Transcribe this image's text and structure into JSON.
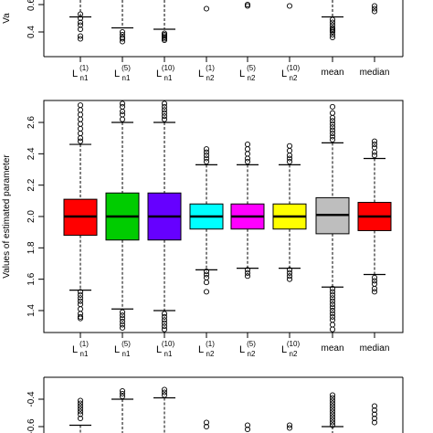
{
  "chart_data": [
    {
      "type": "boxplot",
      "panel": "top-partial",
      "categories": [
        {
          "base": "L",
          "sub": "n1",
          "sup": "(1)"
        },
        {
          "base": "L",
          "sub": "n1",
          "sup": "(5)"
        },
        {
          "base": "L",
          "sub": "n1",
          "sup": "(10)"
        },
        {
          "base": "L",
          "sub": "n2",
          "sup": "(1)"
        },
        {
          "base": "L",
          "sub": "n2",
          "sup": "(5)"
        },
        {
          "base": "L",
          "sub": "n2",
          "sup": "(10)"
        },
        {
          "base": "mean",
          "sub": "",
          "sup": ""
        },
        {
          "base": "median",
          "sub": "",
          "sup": ""
        }
      ],
      "yticks": [
        "0.4",
        "0.6"
      ],
      "ylabel": "Va",
      "visible_range": [
        0.33,
        0.62
      ],
      "lower_whiskers": [
        0.51,
        0.43,
        0.42,
        null,
        null,
        null,
        0.51,
        null
      ],
      "outliers": [
        [
          0.53,
          0.5,
          0.47,
          0.45,
          0.42,
          0.37,
          0.35
        ],
        [
          0.4,
          0.38,
          0.36,
          0.35,
          0.33
        ],
        [
          0.39,
          0.38,
          0.37,
          0.36,
          0.35,
          0.34
        ],
        [
          0.57
        ],
        [
          0.6,
          0.59
        ],
        [
          0.59
        ],
        [
          0.49,
          0.47,
          0.45,
          0.43,
          0.42,
          0.41,
          0.4,
          0.38,
          0.36
        ],
        [
          0.59,
          0.57,
          0.55
        ]
      ]
    },
    {
      "type": "boxplot",
      "panel": "middle",
      "ylabel": "Values of estimated parameter",
      "yticks": [
        "1.4",
        "1.6",
        "1.8",
        "2.0",
        "2.2",
        "2.4",
        "2.6"
      ],
      "ylim": [
        1.26,
        2.74
      ],
      "categories": [
        {
          "base": "L",
          "sub": "n1",
          "sup": "(1)"
        },
        {
          "base": "L",
          "sub": "n1",
          "sup": "(5)"
        },
        {
          "base": "L",
          "sub": "n1",
          "sup": "(10)"
        },
        {
          "base": "L",
          "sub": "n2",
          "sup": "(1)"
        },
        {
          "base": "L",
          "sub": "n2",
          "sup": "(5)"
        },
        {
          "base": "L",
          "sub": "n2",
          "sup": "(10)"
        },
        {
          "base": "mean",
          "sub": "",
          "sup": ""
        },
        {
          "base": "median",
          "sub": "",
          "sup": ""
        }
      ],
      "boxes": [
        {
          "color": "#ff0000",
          "whisker_low": 1.53,
          "q1": 1.88,
          "median": 2.0,
          "q3": 2.11,
          "whisker_high": 2.46,
          "outliers": [
            1.52,
            1.5,
            1.48,
            1.46,
            1.44,
            1.41,
            1.38,
            1.36,
            1.35,
            2.48,
            2.5,
            2.53,
            2.56,
            2.59,
            2.62,
            2.65,
            2.68,
            2.71
          ]
        },
        {
          "color": "#00cc00",
          "whisker_low": 1.41,
          "q1": 1.85,
          "median": 2.0,
          "q3": 2.15,
          "whisker_high": 2.6,
          "outliers": [
            1.39,
            1.37,
            1.35,
            1.33,
            1.31,
            1.29,
            1.27,
            2.62,
            2.65,
            2.67,
            2.7,
            2.72,
            2.74
          ]
        },
        {
          "color": "#6600ff",
          "whisker_low": 1.4,
          "q1": 1.85,
          "median": 2.0,
          "q3": 2.15,
          "whisker_high": 2.6,
          "outliers": [
            1.38,
            1.36,
            1.34,
            1.32,
            1.3,
            1.28,
            1.26,
            2.62,
            2.64,
            2.66,
            2.68,
            2.7,
            2.72,
            2.74
          ]
        },
        {
          "color": "#00ffff",
          "whisker_low": 1.66,
          "q1": 1.92,
          "median": 2.0,
          "q3": 2.08,
          "whisker_high": 2.33,
          "outliers": [
            1.65,
            1.63,
            1.61,
            1.58,
            1.52,
            2.35,
            2.37,
            2.39,
            2.41,
            2.43
          ]
        },
        {
          "color": "#ff00ff",
          "whisker_low": 1.67,
          "q1": 1.92,
          "median": 2.0,
          "q3": 2.08,
          "whisker_high": 2.33,
          "outliers": [
            1.66,
            1.64,
            1.62,
            2.35,
            2.37,
            2.4,
            2.43,
            2.46
          ]
        },
        {
          "color": "#ffff00",
          "whisker_low": 1.67,
          "q1": 1.92,
          "median": 2.0,
          "q3": 2.08,
          "whisker_high": 2.33,
          "outliers": [
            1.66,
            1.64,
            1.62,
            1.6,
            2.35,
            2.37,
            2.39,
            2.42,
            2.45
          ]
        },
        {
          "color": "#bebebe",
          "whisker_low": 1.55,
          "q1": 1.89,
          "median": 2.01,
          "q3": 2.12,
          "whisker_high": 2.47,
          "outliers": [
            1.54,
            1.52,
            1.5,
            1.48,
            1.46,
            1.44,
            1.42,
            1.4,
            1.38,
            1.36,
            1.34,
            1.31,
            1.28,
            2.49,
            2.51,
            2.53,
            2.55,
            2.57,
            2.59,
            2.61,
            2.63,
            2.66,
            2.7,
            2.74
          ]
        },
        {
          "color": "#ff0000",
          "whisker_low": 1.63,
          "q1": 1.91,
          "median": 2.0,
          "q3": 2.09,
          "whisker_high": 2.37,
          "outliers": [
            1.61,
            1.59,
            1.57,
            1.54,
            1.52,
            2.39,
            2.41,
            2.44,
            2.46,
            2.48
          ]
        }
      ]
    },
    {
      "type": "boxplot",
      "panel": "bottom-partial",
      "yticks": [
        "-0.4",
        "-0.6"
      ],
      "visible_range": [
        -0.64,
        -0.33
      ],
      "upper_whiskers": [
        -0.59,
        -0.4,
        -0.39,
        null,
        null,
        null,
        -0.6,
        null
      ],
      "outliers": [
        [
          -0.41,
          -0.43,
          -0.45,
          -0.47,
          -0.49,
          -0.51,
          -0.54
        ],
        [
          -0.34,
          -0.36,
          -0.38
        ],
        [
          -0.33,
          -0.35,
          -0.37
        ],
        [
          -0.57,
          -0.6
        ],
        [
          -0.59,
          -0.62
        ],
        [
          -0.59,
          -0.61
        ],
        [
          -0.37,
          -0.39,
          -0.41,
          -0.43,
          -0.45,
          -0.47,
          -0.49,
          -0.51,
          -0.53,
          -0.55,
          -0.57,
          -0.59
        ],
        [
          -0.45,
          -0.48,
          -0.51,
          -0.54,
          -0.57
        ]
      ]
    }
  ]
}
